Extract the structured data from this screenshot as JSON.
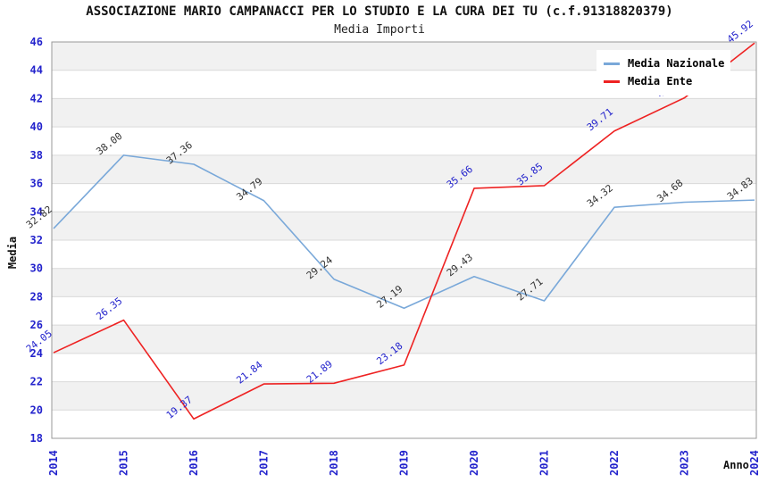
{
  "header": {
    "title": "ASSOCIAZIONE MARIO CAMPANACCI PER LO STUDIO E LA CURA DEI TU (c.f.91318820379)",
    "subtitle": "Media Importi"
  },
  "chart_data": {
    "type": "line",
    "x": [
      "2014",
      "2015",
      "2016",
      "2017",
      "2018",
      "2019",
      "2020",
      "2021",
      "2022",
      "2023",
      "2024"
    ],
    "xlabel": "Anno",
    "ylabel": "Media",
    "ylim": [
      18,
      46
    ],
    "ytick_step": 2,
    "grid": "horizontal gridlines with alternating gray/white bands",
    "legend_position": "top-right",
    "colors": {
      "tick_label": "#2222cc",
      "gridline": "#d9d9d9",
      "stripe": "#f1f1f1",
      "plot_border": "#999999"
    },
    "series": [
      {
        "name": "Media Nazionale",
        "color": "#79a8d9",
        "label_color": "#333333",
        "values": [
          32.82,
          38.0,
          37.36,
          34.79,
          29.24,
          27.19,
          29.43,
          27.71,
          34.32,
          34.68,
          34.83
        ],
        "labels": [
          "32.82",
          "38.00",
          "37.36",
          "34.79",
          "29.24",
          "27.19",
          "29.43",
          "27.71",
          "34.32",
          "34.68",
          "34.83"
        ]
      },
      {
        "name": "Media Ente",
        "color": "#ee2222",
        "label_color": "#2222cc",
        "values": [
          24.05,
          26.35,
          19.37,
          21.84,
          21.89,
          23.18,
          35.66,
          35.85,
          39.71,
          42.05,
          45.92
        ],
        "labels": [
          "24.05",
          "26.35",
          "19.37",
          "21.84",
          "21.89",
          "23.18",
          "35.66",
          "35.85",
          "39.71",
          "42.05",
          "45.92"
        ]
      }
    ]
  }
}
